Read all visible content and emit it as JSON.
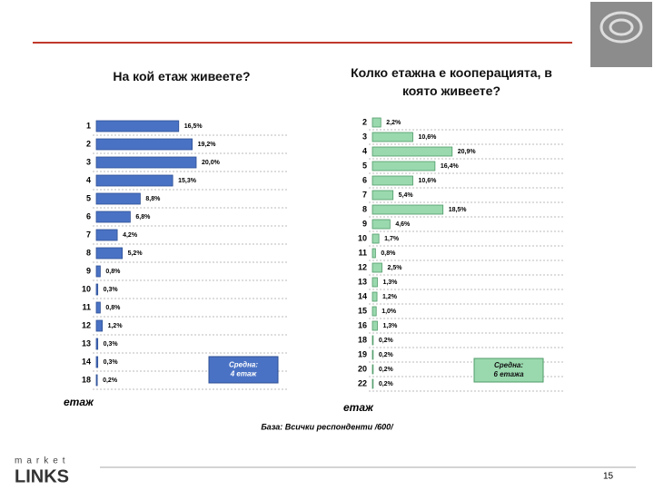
{
  "chart_data": [
    {
      "type": "hbar",
      "title": "На кой етаж живеете?",
      "axis_label": "етаж",
      "categories": [
        "1",
        "2",
        "3",
        "4",
        "5",
        "6",
        "7",
        "8",
        "9",
        "10",
        "11",
        "12",
        "13",
        "14",
        "18"
      ],
      "values": [
        16.5,
        19.2,
        20.0,
        15.3,
        8.8,
        6.8,
        4.2,
        5.2,
        0.8,
        0.3,
        0.8,
        1.2,
        0.3,
        0.3,
        0.2
      ],
      "value_labels": [
        "16,5%",
        "19,2%",
        "20,0%",
        "15,3%",
        "8,8%",
        "6,8%",
        "4,2%",
        "5,2%",
        "0,8%",
        "0,3%",
        "0,8%",
        "1,2%",
        "0,3%",
        "0,3%",
        "0,2%"
      ],
      "color": "#4a72c4",
      "annotation": [
        "Средна:",
        "4 етаж"
      ]
    },
    {
      "type": "hbar",
      "title": "Колко етажна е кооперацията, в която живеете?",
      "axis_label": "етаж",
      "categories": [
        "2",
        "3",
        "4",
        "5",
        "6",
        "7",
        "8",
        "9",
        "10",
        "11",
        "12",
        "13",
        "14",
        "15",
        "16",
        "18",
        "19",
        "20",
        "22"
      ],
      "values": [
        2.2,
        10.6,
        20.9,
        16.4,
        10.6,
        5.4,
        18.5,
        4.6,
        1.7,
        0.8,
        2.5,
        1.3,
        1.2,
        1.0,
        1.3,
        0.2,
        0.2,
        0.2,
        0.2
      ],
      "value_labels": [
        "2,2%",
        "10,6%",
        "20,9%",
        "16,4%",
        "10,6%",
        "5,4%",
        "18,5%",
        "4,6%",
        "1,7%",
        "0,8%",
        "2,5%",
        "1,3%",
        "1,2%",
        "1,0%",
        "1,3%",
        "0,2%",
        "0,2%",
        "0,2%",
        "0,2%"
      ],
      "color": "#9ad9ae",
      "annotation": [
        "Средна:",
        "6 етажа"
      ]
    }
  ],
  "source": "База: Всички респонденти /600/",
  "page_number": "15",
  "logo": {
    "top": "market",
    "bottom": "LINKS"
  }
}
